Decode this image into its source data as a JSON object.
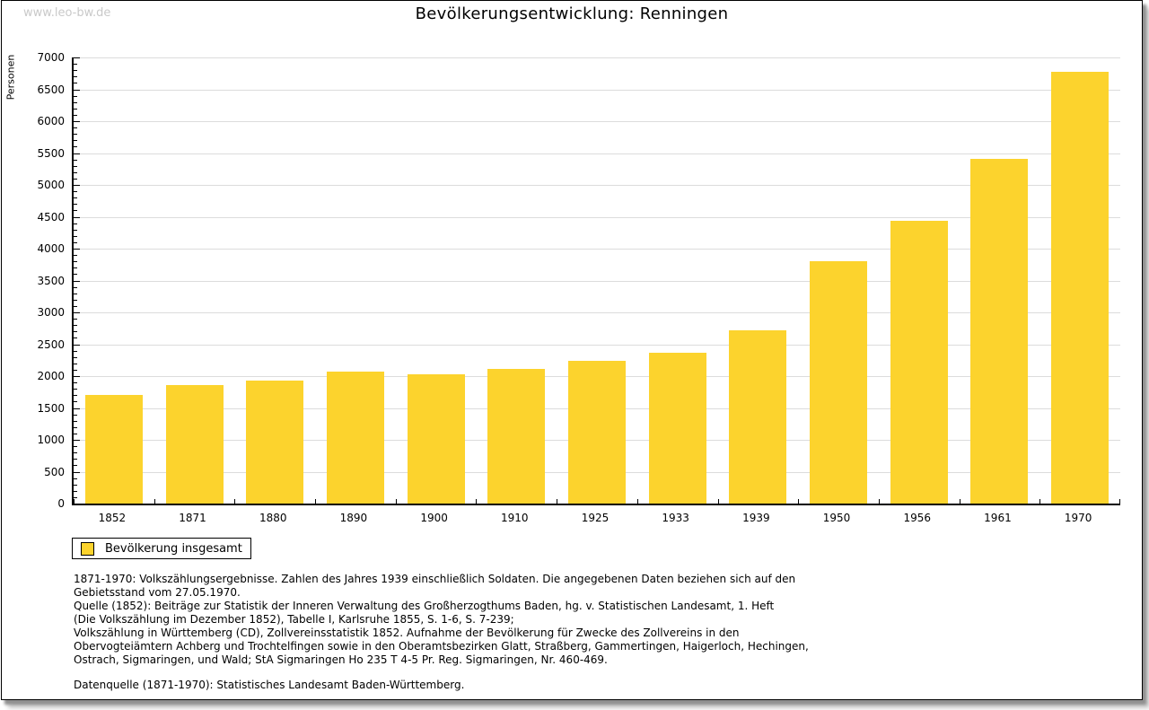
{
  "page": {
    "watermark": "www.leo-bw.de"
  },
  "chart_data": {
    "type": "bar",
    "title": "Bevölkerungsentwicklung: Renningen",
    "ylabel": "Personen",
    "xlabel": "",
    "categories": [
      "1852",
      "1871",
      "1880",
      "1890",
      "1900",
      "1910",
      "1925",
      "1933",
      "1939",
      "1950",
      "1956",
      "1961",
      "1970"
    ],
    "values": [
      1700,
      1860,
      1930,
      2075,
      2025,
      2115,
      2240,
      2370,
      2720,
      3810,
      4435,
      5410,
      6775
    ],
    "ylim": [
      0,
      7000
    ],
    "ytick_step": 500,
    "minor_tick_step": 100,
    "grid": "horizontal-major",
    "bar_color": "#FCD32D",
    "gridline_color": "#dcdcdc",
    "legend": {
      "position": "below-left",
      "entries": [
        "Bevölkerung insgesamt"
      ]
    }
  },
  "footnotes": {
    "lines": [
      "1871-1970: Volkszählungsergebnisse. Zahlen des Jahres 1939 einschließlich Soldaten. Die angegebenen Daten beziehen sich auf den",
      "Gebietsstand vom 27.05.1970.",
      "Quelle (1852): Beiträge zur Statistik der Inneren Verwaltung des Großherzogthums Baden, hg. v. Statistischen Landesamt, 1. Heft",
      "(Die Volkszählung im Dezember 1852), Tabelle I, Karlsruhe 1855, S. 1-6, S. 7-239;",
      "Volkszählung in Württemberg (CD), Zollvereinsstatistik 1852. Aufnahme der Bevölkerung für Zwecke des Zollvereins in den",
      "Obervogteiämtern Achberg und Trochtelfingen sowie in den Oberamtsbezirken Glatt, Straßberg, Gammertingen, Haigerloch, Hechingen,",
      "Ostrach, Sigmaringen, und Wald; StA Sigmaringen Ho 235 T 4-5 Pr. Reg. Sigmaringen, Nr. 460-469."
    ],
    "source": "Datenquelle (1871-1970): Statistisches Landesamt Baden-Württemberg."
  }
}
